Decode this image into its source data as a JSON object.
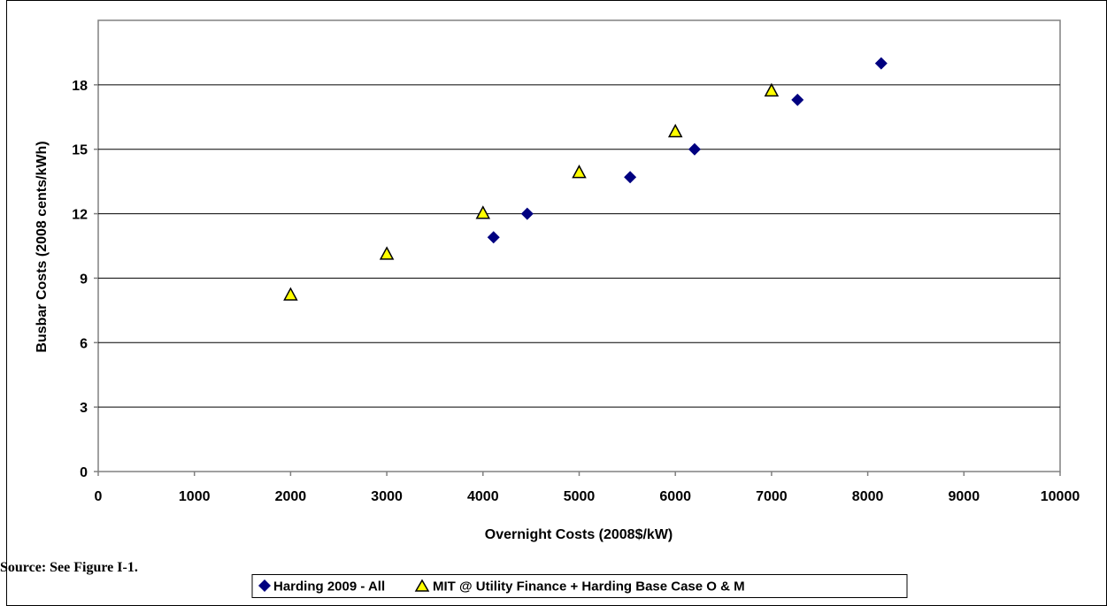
{
  "source_note": "Source: See Figure I-1.",
  "colors": {
    "plot_bg": "#ffffff",
    "plot_border": "#808080",
    "gridline": "#000000",
    "harding_marker": "#000080",
    "mit_marker": "#ffff00",
    "mit_marker_edge": "#000000"
  },
  "chart_data": {
    "type": "scatter",
    "title": "",
    "xlabel": "Overnight Costs (2008$/kW)",
    "ylabel": "Busbar Costs (2008 cents/kWh)",
    "xlim": [
      0,
      10000
    ],
    "ylim": [
      0,
      21
    ],
    "x_ticks": [
      0,
      1000,
      2000,
      3000,
      4000,
      5000,
      6000,
      7000,
      8000,
      9000,
      10000
    ],
    "y_ticks": [
      0,
      3,
      6,
      9,
      12,
      15,
      18
    ],
    "grid": "horizontal major gridlines",
    "legend_position": "bottom",
    "series": [
      {
        "name": "Harding 2009 - All",
        "marker": "diamond",
        "color": "#000080",
        "points": [
          {
            "x": 4110,
            "y": 10.9
          },
          {
            "x": 4460,
            "y": 12.0
          },
          {
            "x": 5530,
            "y": 13.7
          },
          {
            "x": 6200,
            "y": 15.0
          },
          {
            "x": 7270,
            "y": 17.3
          },
          {
            "x": 8140,
            "y": 19.0
          }
        ]
      },
      {
        "name": "MIT @ Utility Finance + Harding Base Case O & M",
        "marker": "triangle",
        "color": "#ffff00",
        "points": [
          {
            "x": 2000,
            "y": 8.2
          },
          {
            "x": 3000,
            "y": 10.1
          },
          {
            "x": 4000,
            "y": 12.0
          },
          {
            "x": 5000,
            "y": 13.9
          },
          {
            "x": 6000,
            "y": 15.8
          },
          {
            "x": 7000,
            "y": 17.7
          }
        ]
      }
    ]
  }
}
